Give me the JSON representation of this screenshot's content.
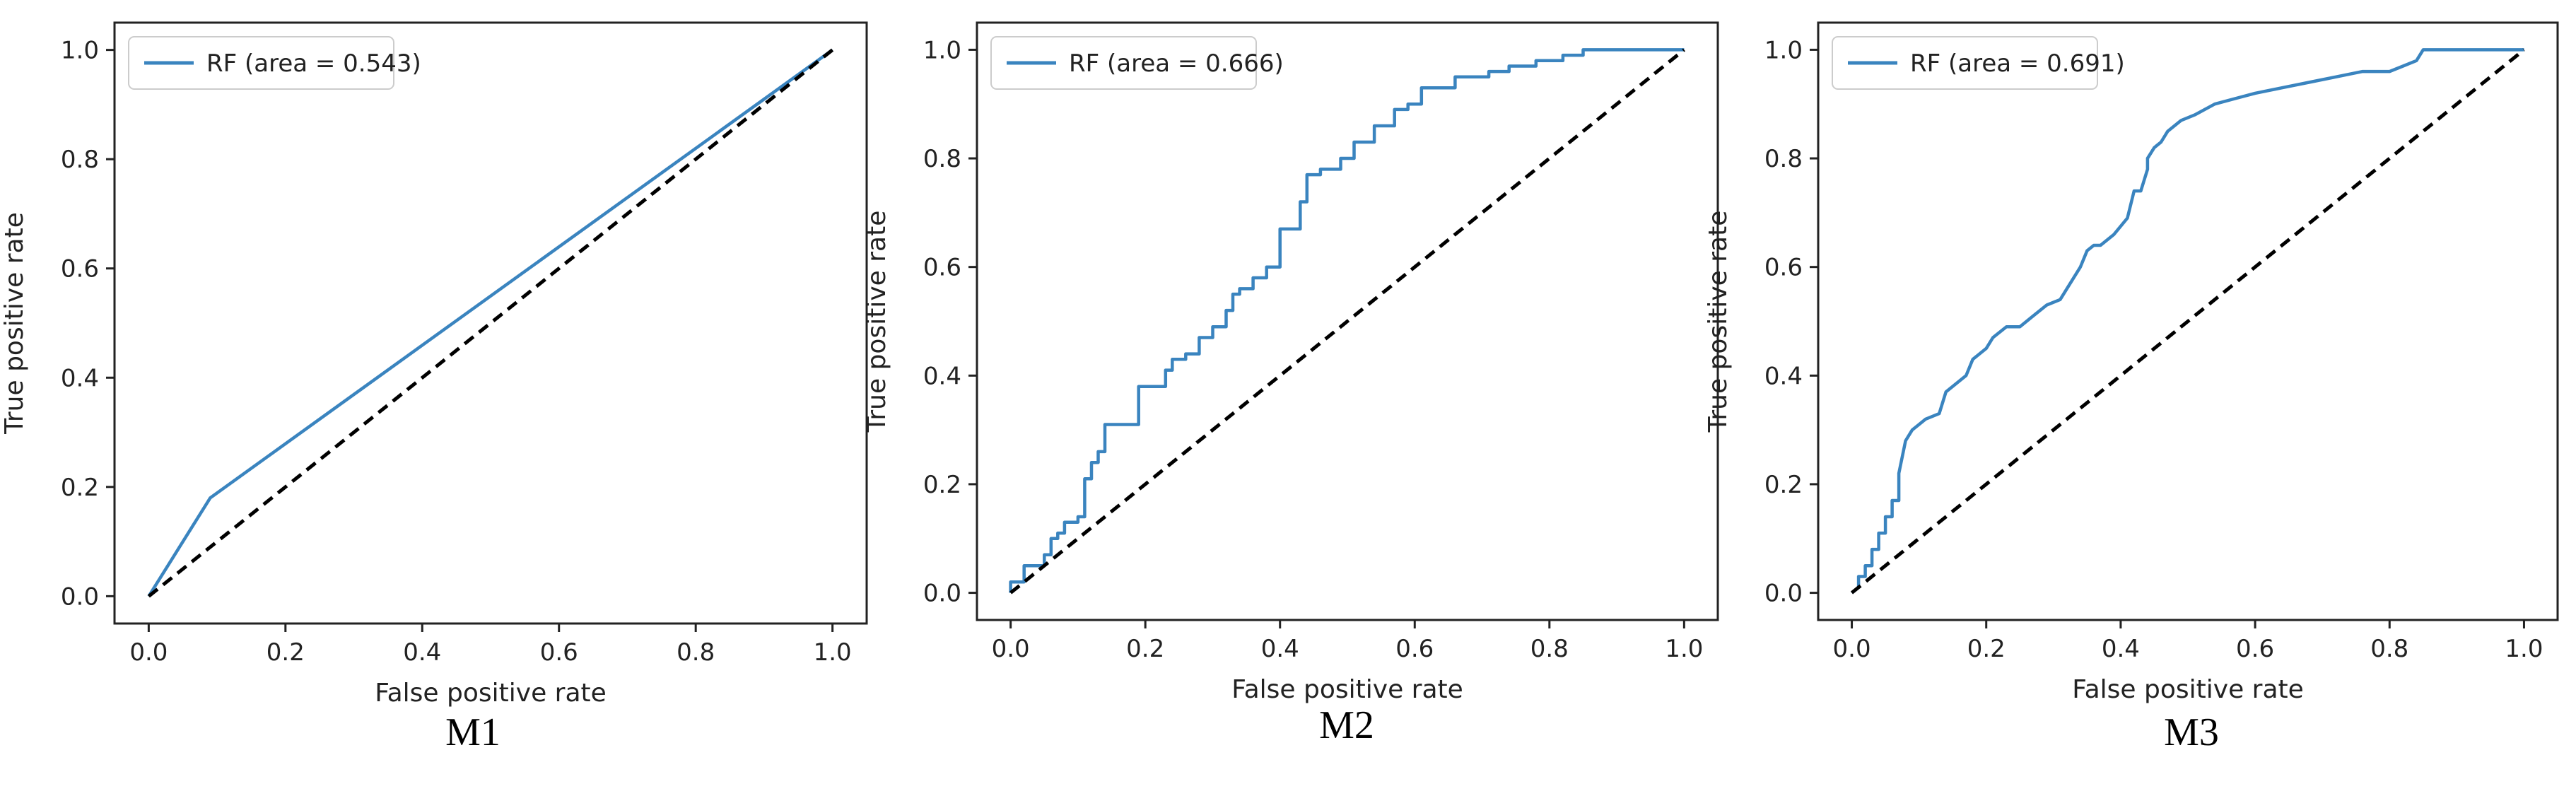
{
  "colors": {
    "curve": "#3a84bf",
    "diagonal": "#000000",
    "axes": "#222222"
  },
  "chart_data": [
    {
      "type": "line",
      "caption": "M1",
      "xlabel": "False positive rate",
      "ylabel": "True positive rate",
      "xlim": [
        -0.05,
        1.05
      ],
      "ylim": [
        -0.05,
        1.05
      ],
      "xticks": [
        "0.0",
        "0.2",
        "0.4",
        "0.6",
        "0.8",
        "1.0"
      ],
      "yticks": [
        "0.0",
        "0.2",
        "0.4",
        "0.6",
        "0.8",
        "1.0"
      ],
      "grid": false,
      "legend_position": "top-left",
      "series": [
        {
          "name": "RF (area = 0.543)",
          "style": "solid",
          "x": [
            0.0,
            0.09,
            1.0
          ],
          "y": [
            0.0,
            0.18,
            1.0
          ]
        },
        {
          "style": "dashed",
          "x": [
            0.0,
            1.0
          ],
          "y": [
            0.0,
            1.0
          ]
        }
      ]
    },
    {
      "type": "line",
      "caption": "M2",
      "xlabel": "False positive rate",
      "ylabel": "True positive rate",
      "xlim": [
        -0.05,
        1.05
      ],
      "ylim": [
        -0.05,
        1.05
      ],
      "xticks": [
        "0.0",
        "0.2",
        "0.4",
        "0.6",
        "0.8",
        "1.0"
      ],
      "yticks": [
        "0.0",
        "0.2",
        "0.4",
        "0.6",
        "0.8",
        "1.0"
      ],
      "grid": false,
      "legend_position": "top-left",
      "series": [
        {
          "name": "RF (area = 0.666)",
          "style": "solid",
          "x": [
            0.0,
            0.0,
            0.02,
            0.02,
            0.05,
            0.05,
            0.06,
            0.06,
            0.07,
            0.07,
            0.08,
            0.08,
            0.1,
            0.1,
            0.11,
            0.11,
            0.12,
            0.12,
            0.13,
            0.13,
            0.14,
            0.14,
            0.19,
            0.19,
            0.23,
            0.23,
            0.24,
            0.24,
            0.26,
            0.26,
            0.28,
            0.28,
            0.3,
            0.3,
            0.32,
            0.32,
            0.33,
            0.33,
            0.34,
            0.34,
            0.36,
            0.36,
            0.38,
            0.38,
            0.4,
            0.4,
            0.43,
            0.43,
            0.44,
            0.44,
            0.46,
            0.46,
            0.49,
            0.49,
            0.51,
            0.51,
            0.54,
            0.54,
            0.57,
            0.57,
            0.59,
            0.59,
            0.61,
            0.61,
            0.66,
            0.66,
            0.71,
            0.71,
            0.74,
            0.74,
            0.78,
            0.78,
            0.82,
            0.82,
            0.85,
            0.85,
            0.95,
            0.95,
            1.0
          ],
          "y": [
            0.0,
            0.02,
            0.02,
            0.05,
            0.05,
            0.07,
            0.07,
            0.1,
            0.1,
            0.11,
            0.11,
            0.13,
            0.13,
            0.14,
            0.14,
            0.21,
            0.21,
            0.24,
            0.24,
            0.26,
            0.26,
            0.31,
            0.31,
            0.38,
            0.38,
            0.41,
            0.41,
            0.43,
            0.43,
            0.44,
            0.44,
            0.47,
            0.47,
            0.49,
            0.49,
            0.52,
            0.52,
            0.55,
            0.55,
            0.56,
            0.56,
            0.58,
            0.58,
            0.6,
            0.6,
            0.67,
            0.67,
            0.72,
            0.72,
            0.77,
            0.77,
            0.78,
            0.78,
            0.8,
            0.8,
            0.83,
            0.83,
            0.86,
            0.86,
            0.89,
            0.89,
            0.9,
            0.9,
            0.93,
            0.93,
            0.95,
            0.95,
            0.96,
            0.96,
            0.97,
            0.97,
            0.98,
            0.98,
            0.99,
            0.99,
            1.0,
            1.0,
            1.0,
            1.0
          ]
        },
        {
          "style": "dashed",
          "x": [
            0.0,
            1.0
          ],
          "y": [
            0.0,
            1.0
          ]
        }
      ]
    },
    {
      "type": "line",
      "caption": "M3",
      "xlabel": "False positive rate",
      "ylabel": "True positive rate",
      "xlim": [
        -0.05,
        1.05
      ],
      "ylim": [
        -0.05,
        1.05
      ],
      "xticks": [
        "0.0",
        "0.2",
        "0.4",
        "0.6",
        "0.8",
        "1.0"
      ],
      "yticks": [
        "0.0",
        "0.2",
        "0.4",
        "0.6",
        "0.8",
        "1.0"
      ],
      "grid": false,
      "legend_position": "top-left",
      "series": [
        {
          "name": "RF (area = 0.691)",
          "style": "solid",
          "x": [
            0.0,
            0.01,
            0.01,
            0.02,
            0.02,
            0.03,
            0.03,
            0.04,
            0.04,
            0.05,
            0.05,
            0.06,
            0.06,
            0.07,
            0.07,
            0.08,
            0.09,
            0.1,
            0.11,
            0.13,
            0.14,
            0.17,
            0.18,
            0.2,
            0.21,
            0.23,
            0.25,
            0.27,
            0.29,
            0.31,
            0.32,
            0.34,
            0.35,
            0.36,
            0.37,
            0.39,
            0.41,
            0.42,
            0.43,
            0.44,
            0.44,
            0.45,
            0.46,
            0.47,
            0.49,
            0.51,
            0.54,
            0.57,
            0.6,
            0.64,
            0.68,
            0.72,
            0.76,
            0.8,
            0.82,
            0.84,
            0.85,
            0.87,
            0.95,
            1.0
          ],
          "y": [
            0.0,
            0.01,
            0.03,
            0.03,
            0.05,
            0.05,
            0.08,
            0.08,
            0.11,
            0.11,
            0.14,
            0.14,
            0.17,
            0.17,
            0.22,
            0.28,
            0.3,
            0.31,
            0.32,
            0.33,
            0.37,
            0.4,
            0.43,
            0.45,
            0.47,
            0.49,
            0.49,
            0.51,
            0.53,
            0.54,
            0.56,
            0.6,
            0.63,
            0.64,
            0.64,
            0.66,
            0.69,
            0.74,
            0.74,
            0.78,
            0.8,
            0.82,
            0.83,
            0.85,
            0.87,
            0.88,
            0.9,
            0.91,
            0.92,
            0.93,
            0.94,
            0.95,
            0.96,
            0.96,
            0.97,
            0.98,
            1.0,
            1.0,
            1.0,
            1.0
          ]
        },
        {
          "style": "dashed",
          "x": [
            0.0,
            1.0
          ],
          "y": [
            0.0,
            1.0
          ]
        }
      ]
    }
  ]
}
